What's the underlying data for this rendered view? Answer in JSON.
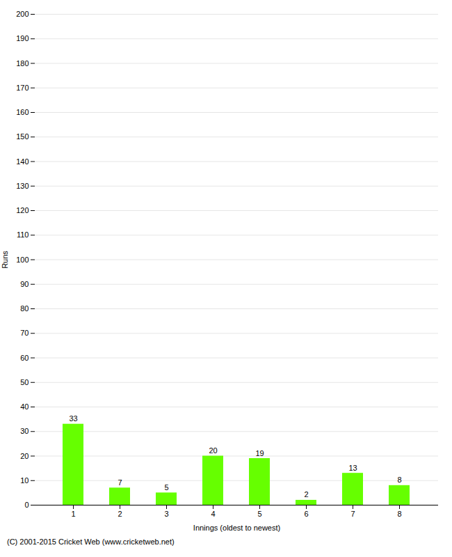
{
  "chart_data": {
    "type": "bar",
    "xlabel": "Innings (oldest to newest)",
    "ylabel": "Runs",
    "categories": [
      "1",
      "2",
      "3",
      "4",
      "5",
      "6",
      "7",
      "8"
    ],
    "values": [
      33,
      7,
      5,
      20,
      19,
      2,
      13,
      8
    ],
    "color": "#66ff00",
    "ylim": [
      0,
      200
    ],
    "yticks": [
      0,
      10,
      20,
      30,
      40,
      50,
      60,
      70,
      80,
      90,
      100,
      110,
      120,
      130,
      140,
      150,
      160,
      170,
      180,
      190,
      200
    ],
    "grid": true,
    "data_labels": true,
    "annotations": [
      "(C) 2001-2015 Cricket Web (www.cricketweb.net)"
    ]
  }
}
